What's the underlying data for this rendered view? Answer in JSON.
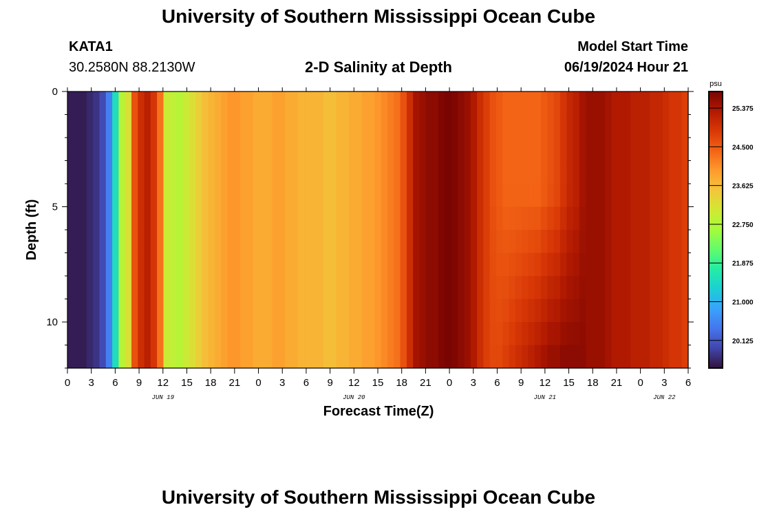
{
  "page": {
    "title": "University of Southern Mississippi Ocean Cube",
    "footer_title": "University of Southern Mississippi Ocean Cube",
    "station": "KATA1",
    "coords": "30.2580N  88.2130W",
    "plot_title": "2-D Salinity at Depth",
    "model_label": "Model Start Time",
    "model_time": "06/19/2024 Hour 21"
  },
  "colors": {
    "background": "#ffffff",
    "colormap": [
      "#30123b",
      "#4145ab",
      "#4675ed",
      "#39a2fc",
      "#1bcfd4",
      "#24eca6",
      "#61fc6c",
      "#a4fc3b",
      "#d1e834",
      "#f3c63a",
      "#fe9b2d",
      "#f36315",
      "#d93806",
      "#b11901",
      "#7a0402"
    ]
  },
  "chart_data": {
    "type": "heatmap",
    "title": "2-D Salinity at Depth",
    "xlabel": "Forecast Time(Z)",
    "ylabel": "Depth (ft)",
    "x_tick_labels": [
      "0",
      "3",
      "6",
      "9",
      "12",
      "15",
      "18",
      "21",
      "0",
      "3",
      "6",
      "9",
      "12",
      "15",
      "18",
      "21",
      "0",
      "3",
      "6",
      "9",
      "12",
      "15",
      "18",
      "21",
      "0",
      "3",
      "6"
    ],
    "day_labels": [
      {
        "label": "JUN 19",
        "hour": 12
      },
      {
        "label": "JUN 20",
        "hour": 36
      },
      {
        "label": "JUN 21",
        "hour": 60
      },
      {
        "label": "JUN 22",
        "hour": 75
      }
    ],
    "x_range_hours": [
      0,
      78
    ],
    "y_ticks": [
      0,
      5,
      10
    ],
    "ylim": [
      0,
      12
    ],
    "depth_step_ft": 1,
    "colorbar": {
      "unit": "psu",
      "min": 19.5,
      "max": 25.75,
      "ticks": [
        "25.375",
        "24.500",
        "23.625",
        "22.750",
        "21.875",
        "21.000",
        "20.125"
      ]
    },
    "surface_salinity_psu": [
      19.6,
      19.6,
      19.6,
      19.7,
      19.8,
      20.0,
      20.5,
      21.5,
      22.8,
      23.2,
      24.6,
      25.0,
      25.2,
      24.9,
      24.3,
      23.0,
      22.9,
      22.8,
      23.0,
      23.2,
      23.4,
      23.6,
      23.7,
      23.8,
      23.9,
      24.0,
      24.0,
      23.9,
      23.9,
      23.8,
      23.8,
      23.8,
      23.9,
      23.9,
      23.8,
      23.8,
      23.7,
      23.7,
      23.7,
      23.7,
      23.6,
      23.6,
      23.7,
      23.7,
      23.8,
      23.8,
      23.9,
      23.9,
      24.0,
      24.1,
      24.2,
      24.3,
      24.6,
      25.0,
      25.4,
      25.5,
      25.6,
      25.6,
      25.7,
      25.75,
      25.7,
      25.6,
      25.5,
      25.3,
      25.0,
      24.8,
      24.6,
      24.5,
      24.4,
      24.4,
      24.4,
      24.4,
      24.4,
      24.4,
      24.5,
      24.6,
      24.7,
      24.9,
      25.1,
      25.2,
      25.4,
      25.5,
      25.5,
      25.5,
      25.4,
      25.3,
      25.3,
      25.3,
      25.2,
      25.2,
      25.2,
      25.1,
      25.1,
      25.0,
      24.9,
      24.9,
      24.8
    ],
    "deep_salinity_psu": [
      19.6,
      19.6,
      19.6,
      19.7,
      19.8,
      20.0,
      20.5,
      21.5,
      22.8,
      23.2,
      24.6,
      25.0,
      25.2,
      24.9,
      24.3,
      23.0,
      22.9,
      22.8,
      23.0,
      23.2,
      23.4,
      23.6,
      23.7,
      23.8,
      23.9,
      24.0,
      24.0,
      23.9,
      23.9,
      23.8,
      23.8,
      23.8,
      23.9,
      23.9,
      23.8,
      23.8,
      23.7,
      23.7,
      23.7,
      23.7,
      23.6,
      23.6,
      23.7,
      23.7,
      23.8,
      23.8,
      23.9,
      23.9,
      24.0,
      24.1,
      24.2,
      24.3,
      24.6,
      25.0,
      25.4,
      25.5,
      25.6,
      25.6,
      25.7,
      25.75,
      25.7,
      25.6,
      25.5,
      25.3,
      25.0,
      24.8,
      24.7,
      24.7,
      24.8,
      24.9,
      25.0,
      25.1,
      25.2,
      25.3,
      25.4,
      25.5,
      25.5,
      25.6,
      25.6,
      25.6,
      25.6,
      25.5,
      25.5,
      25.5,
      25.4,
      25.3,
      25.3,
      25.3,
      25.2,
      25.2,
      25.2,
      25.1,
      25.1,
      25.0,
      24.9,
      24.9,
      24.8
    ]
  }
}
